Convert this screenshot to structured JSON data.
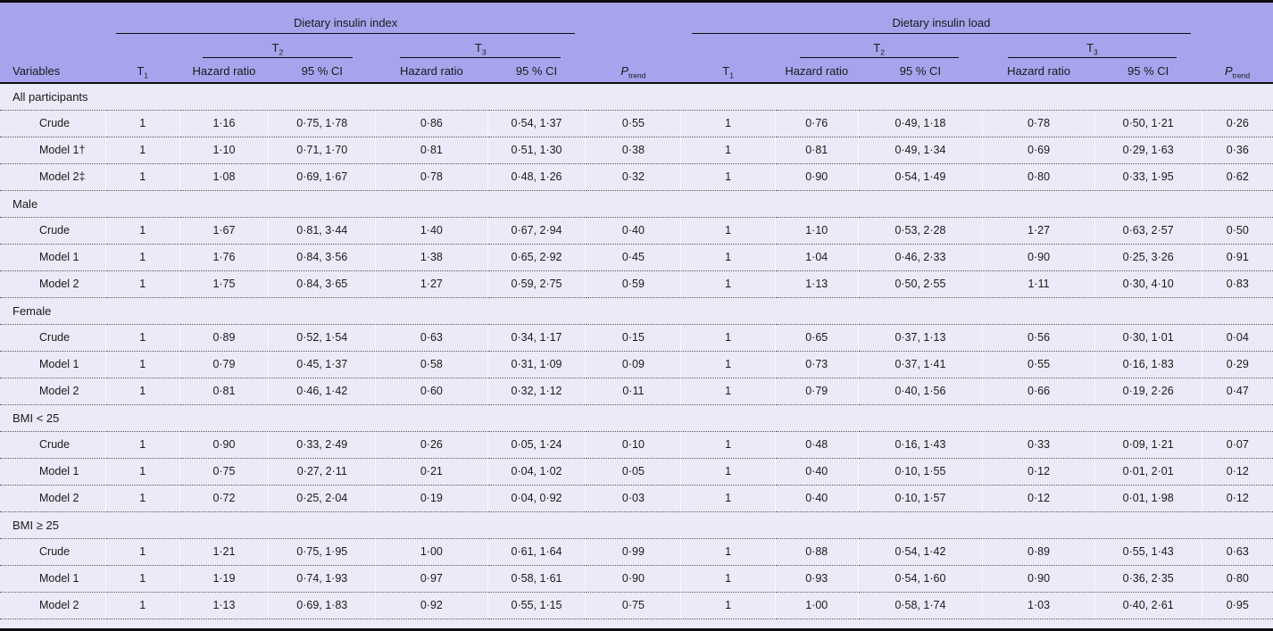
{
  "colors": {
    "header_bg": "#a7a4ed",
    "body_bg": "#ebeaf8",
    "rule": "#0d0d0d",
    "dotted_divider": "#5a5a5a"
  },
  "table": {
    "group1_title": "Dietary insulin index",
    "group2_title": "Dietary insulin load",
    "tertile1": {
      "base": "T",
      "sub": "1"
    },
    "tertile2": {
      "base": "T",
      "sub": "2"
    },
    "tertile3": {
      "base": "T",
      "sub": "3"
    },
    "columns": {
      "variables": "Variables",
      "hazard_ratio": "Hazard ratio",
      "ci": "95 % CI",
      "p_trend": {
        "base": "P",
        "sub": "trend"
      }
    },
    "sections": [
      {
        "label": "All participants",
        "rows": [
          {
            "label": "Crude",
            "values": [
              "1",
              "1·16",
              "0·75, 1·78",
              "0·86",
              "0·54, 1·37",
              "0·55",
              "1",
              "0·76",
              "0·49, 1·18",
              "0·78",
              "0·50, 1·21",
              "0·26"
            ]
          },
          {
            "label": "Model 1†",
            "values": [
              "1",
              "1·10",
              "0·71, 1·70",
              "0·81",
              "0·51, 1·30",
              "0·38",
              "1",
              "0·81",
              "0·49, 1·34",
              "0·69",
              "0·29, 1·63",
              "0·36"
            ]
          },
          {
            "label": "Model 2‡",
            "values": [
              "1",
              "1·08",
              "0·69, 1·67",
              "0·78",
              "0·48, 1·26",
              "0·32",
              "1",
              "0·90",
              "0·54, 1·49",
              "0·80",
              "0·33, 1·95",
              "0·62"
            ]
          }
        ]
      },
      {
        "label": "Male",
        "rows": [
          {
            "label": "Crude",
            "values": [
              "1",
              "1·67",
              "0·81, 3·44",
              "1·40",
              "0·67, 2·94",
              "0·40",
              "1",
              "1·10",
              "0·53, 2·28",
              "1·27",
              "0·63, 2·57",
              "0·50"
            ]
          },
          {
            "label": "Model 1",
            "values": [
              "1",
              "1·76",
              "0·84, 3·56",
              "1·38",
              "0·65, 2·92",
              "0·45",
              "1",
              "1·04",
              "0·46, 2·33",
              "0·90",
              "0·25, 3·26",
              "0·91"
            ]
          },
          {
            "label": "Model 2",
            "values": [
              "1",
              "1·75",
              "0·84, 3·65",
              "1·27",
              "0·59, 2·75",
              "0·59",
              "1",
              "1·13",
              "0·50, 2·55",
              "1·11",
              "0·30, 4·10",
              "0·83"
            ]
          }
        ]
      },
      {
        "label": "Female",
        "rows": [
          {
            "label": "Crude",
            "values": [
              "1",
              "0·89",
              "0·52, 1·54",
              "0·63",
              "0·34, 1·17",
              "0·15",
              "1",
              "0·65",
              "0·37, 1·13",
              "0·56",
              "0·30, 1·01",
              "0·04"
            ]
          },
          {
            "label": "Model 1",
            "values": [
              "1",
              "0·79",
              "0·45, 1·37",
              "0·58",
              "0·31, 1·09",
              "0·09",
              "1",
              "0·73",
              "0·37, 1·41",
              "0·55",
              "0·16, 1·83",
              "0·29"
            ]
          },
          {
            "label": "Model 2",
            "values": [
              "1",
              "0·81",
              "0·46, 1·42",
              "0·60",
              "0·32, 1·12",
              "0·11",
              "1",
              "0·79",
              "0·40, 1·56",
              "0·66",
              "0·19, 2·26",
              "0·47"
            ]
          }
        ]
      },
      {
        "label": "BMI < 25",
        "rows": [
          {
            "label": "Crude",
            "values": [
              "1",
              "0·90",
              "0·33, 2·49",
              "0·26",
              "0·05, 1·24",
              "0·10",
              "1",
              "0·48",
              "0·16, 1·43",
              "0·33",
              "0·09, 1·21",
              "0·07"
            ]
          },
          {
            "label": "Model 1",
            "values": [
              "1",
              "0·75",
              "0·27, 2·11",
              "0·21",
              "0·04, 1·02",
              "0·05",
              "1",
              "0·40",
              "0·10, 1·55",
              "0·12",
              "0·01, 2·01",
              "0·12"
            ]
          },
          {
            "label": "Model 2",
            "values": [
              "1",
              "0·72",
              "0·25, 2·04",
              "0·19",
              "0·04, 0·92",
              "0·03",
              "1",
              "0·40",
              "0·10, 1·57",
              "0·12",
              "0·01, 1·98",
              "0·12"
            ]
          }
        ]
      },
      {
        "label": "BMI ≥ 25",
        "rows": [
          {
            "label": "Crude",
            "values": [
              "1",
              "1·21",
              "0·75, 1·95",
              "1·00",
              "0·61, 1·64",
              "0·99",
              "1",
              "0·88",
              "0·54, 1·42",
              "0·89",
              "0·55, 1·43",
              "0·63"
            ]
          },
          {
            "label": "Model 1",
            "values": [
              "1",
              "1·19",
              "0·74, 1·93",
              "0·97",
              "0·58, 1·61",
              "0·90",
              "1",
              "0·93",
              "0·54, 1·60",
              "0·90",
              "0·36, 2·35",
              "0·80"
            ]
          },
          {
            "label": "Model 2",
            "values": [
              "1",
              "1·13",
              "0·69, 1·83",
              "0·92",
              "0·55, 1·15",
              "0·75",
              "1",
              "1·00",
              "0·58, 1·74",
              "1·03",
              "0·40, 2·61",
              "0·95"
            ]
          }
        ]
      }
    ]
  }
}
